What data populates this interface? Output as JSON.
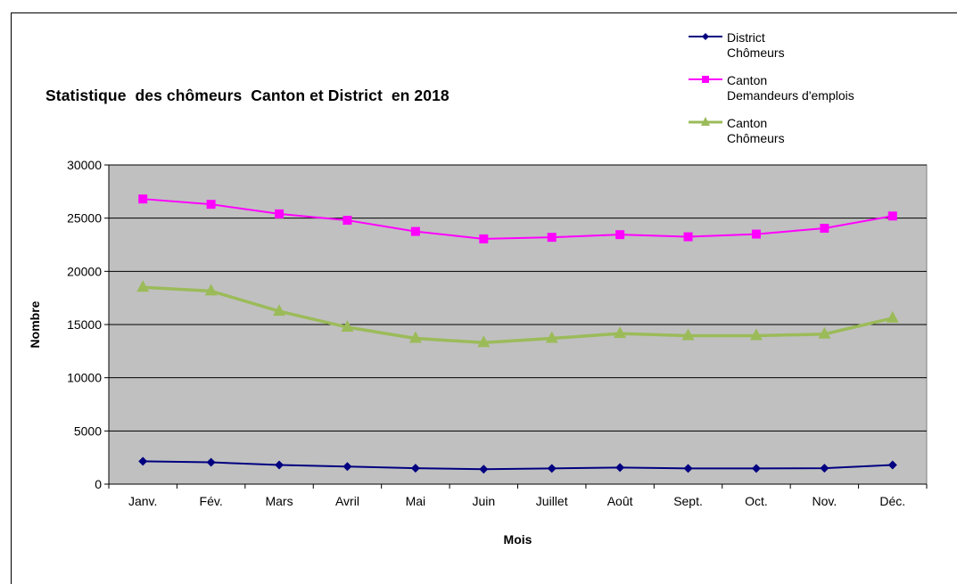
{
  "chart_data": {
    "type": "line",
    "title": "Statistique  des chômeurs  Canton et District  en 2018",
    "xlabel": "Mois",
    "ylabel": "Nombre",
    "categories": [
      "Janv.",
      "Fév.",
      "Mars",
      "Avril",
      "Mai",
      "Juin",
      "Juillet",
      "Août",
      "Sept.",
      "Oct.",
      "Nov.",
      "Déc."
    ],
    "ylim": [
      0,
      30000
    ],
    "yticks": [
      "0",
      "5000",
      "10000",
      "15000",
      "20000",
      "25000",
      "30000"
    ],
    "grid": true,
    "legend_position": "top-right",
    "series": [
      {
        "name": "District Chômeurs",
        "name_lines": [
          "District",
          "Chômeurs"
        ],
        "color": "#000080",
        "marker": "diamond",
        "values": [
          2150,
          2050,
          1800,
          1650,
          1500,
          1400,
          1480,
          1560,
          1480,
          1480,
          1500,
          1800
        ]
      },
      {
        "name": "Canton Demandeurs d'emplois",
        "name_lines": [
          "Canton",
          "Demandeurs d'emplois"
        ],
        "color": "#ff00ff",
        "marker": "square",
        "values": [
          26800,
          26300,
          25400,
          24800,
          23750,
          23050,
          23200,
          23450,
          23250,
          23500,
          24050,
          25200
        ]
      },
      {
        "name": "Canton Chômeurs",
        "name_lines": [
          "Canton",
          "Chômeurs"
        ],
        "color": "#9bbb59",
        "marker": "triangle",
        "values": [
          18500,
          18150,
          16250,
          14750,
          13700,
          13300,
          13700,
          14150,
          13950,
          13950,
          14100,
          15600
        ]
      }
    ]
  }
}
